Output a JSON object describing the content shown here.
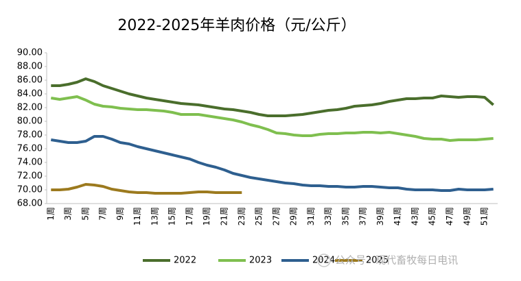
{
  "chart_data": {
    "type": "line",
    "title": "2022-2025年羊肉价格（元/公斤）",
    "categories": [
      "1周",
      null,
      "3周",
      null,
      "5周",
      null,
      "7周",
      null,
      "9周",
      null,
      "11周",
      null,
      "13周",
      null,
      "15周",
      null,
      "17周",
      null,
      "19周",
      null,
      "21周",
      null,
      "23周",
      null,
      "25周",
      null,
      "27周",
      null,
      "29周",
      null,
      "31周",
      null,
      "33周",
      null,
      "35周",
      null,
      "37周",
      null,
      "39周",
      null,
      "41周",
      null,
      "43周",
      null,
      "45周",
      null,
      "47周",
      null,
      "49周",
      null,
      "51周",
      null
    ],
    "series": [
      {
        "name": "2022",
        "color": "#4a6e2c",
        "values": [
          85.2,
          85.2,
          85.4,
          85.7,
          86.2,
          85.8,
          85.2,
          84.8,
          84.4,
          84.0,
          83.7,
          83.4,
          83.2,
          83.0,
          82.8,
          82.6,
          82.5,
          82.4,
          82.2,
          82.0,
          81.8,
          81.7,
          81.5,
          81.3,
          81.0,
          80.8,
          80.8,
          80.8,
          80.9,
          81.0,
          81.2,
          81.4,
          81.6,
          81.7,
          81.9,
          82.2,
          82.3,
          82.4,
          82.6,
          82.9,
          83.1,
          83.3,
          83.3,
          83.4,
          83.4,
          83.7,
          83.6,
          83.5,
          83.6,
          83.6,
          83.5,
          82.4
        ]
      },
      {
        "name": "2023",
        "color": "#7fbf4f",
        "values": [
          83.4,
          83.2,
          83.4,
          83.6,
          83.1,
          82.5,
          82.2,
          82.1,
          81.9,
          81.8,
          81.7,
          81.7,
          81.6,
          81.5,
          81.3,
          81.0,
          81.0,
          81.0,
          80.8,
          80.6,
          80.4,
          80.2,
          79.9,
          79.5,
          79.2,
          78.8,
          78.3,
          78.2,
          78.0,
          77.9,
          77.9,
          78.1,
          78.2,
          78.2,
          78.3,
          78.3,
          78.4,
          78.4,
          78.3,
          78.4,
          78.2,
          78.0,
          77.8,
          77.5,
          77.4,
          77.4,
          77.2,
          77.3,
          77.3,
          77.3,
          77.4,
          77.5
        ]
      },
      {
        "name": "2024",
        "color": "#2e5f8f",
        "values": [
          77.3,
          77.1,
          76.9,
          76.9,
          77.1,
          77.8,
          77.8,
          77.4,
          76.9,
          76.7,
          76.3,
          76.0,
          75.7,
          75.4,
          75.1,
          74.8,
          74.5,
          74.0,
          73.6,
          73.3,
          72.9,
          72.4,
          72.1,
          71.8,
          71.6,
          71.4,
          71.2,
          71.0,
          70.9,
          70.7,
          70.6,
          70.6,
          70.5,
          70.5,
          70.4,
          70.4,
          70.5,
          70.5,
          70.4,
          70.3,
          70.3,
          70.1,
          70.0,
          70.0,
          70.0,
          69.9,
          69.9,
          70.1,
          70.0,
          70.0,
          70.0,
          70.1
        ]
      },
      {
        "name": "2025",
        "color": "#9c7a1e",
        "values": [
          70.0,
          70.0,
          70.1,
          70.4,
          70.8,
          70.7,
          70.5,
          70.1,
          69.9,
          69.7,
          69.6,
          69.6,
          69.5,
          69.5,
          69.5,
          69.5,
          69.6,
          69.7,
          69.7,
          69.6,
          69.6,
          69.6,
          69.6,
          null,
          null,
          null,
          null,
          null,
          null,
          null,
          null,
          null,
          null,
          null,
          null,
          null,
          null,
          null,
          null,
          null,
          null,
          null,
          null,
          null,
          null,
          null,
          null,
          null,
          null,
          null,
          null,
          null
        ]
      }
    ],
    "ylim": [
      68,
      90
    ],
    "yticks": [
      {
        "value": 68,
        "label": "68.00"
      },
      {
        "value": 70,
        "label": "70.00"
      },
      {
        "value": 72,
        "label": "72.00"
      },
      {
        "value": 74,
        "label": "74.00"
      },
      {
        "value": 76,
        "label": "76.00"
      },
      {
        "value": 78,
        "label": "78.00"
      },
      {
        "value": 80,
        "label": "80.00"
      },
      {
        "value": 82,
        "label": "82.00"
      },
      {
        "value": 84,
        "label": "84.00"
      },
      {
        "value": 86,
        "label": "86.00"
      },
      {
        "value": 88,
        "label": "88.00"
      },
      {
        "value": 90,
        "label": "90.00"
      }
    ],
    "grid": false,
    "legend": "bottom",
    "watermark": "公众号 · 现代畜牧每日电讯"
  }
}
